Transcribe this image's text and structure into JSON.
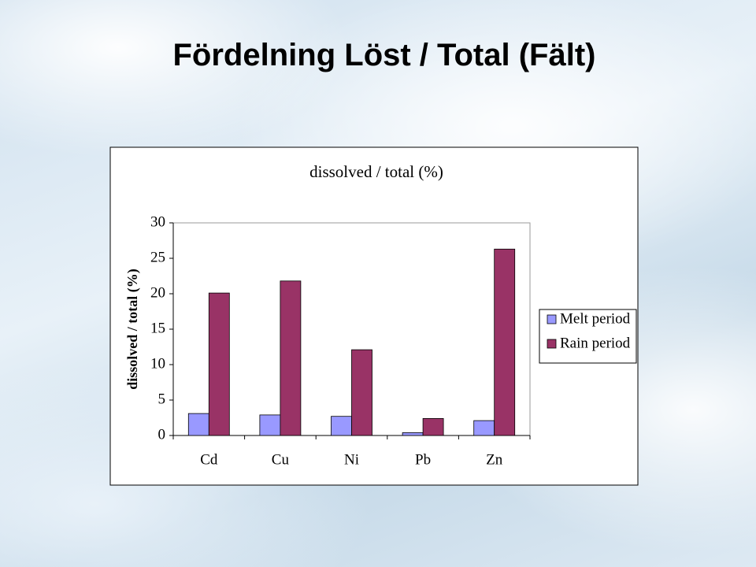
{
  "slide": {
    "title": "Fördelning Löst / Total (Fält)"
  },
  "chart_data": {
    "type": "bar",
    "title": "dissolved / total (%)",
    "y_label": "dissolved / total (%)",
    "categories": [
      "Cd",
      "Cu",
      "Ni",
      "Pb",
      "Zn"
    ],
    "series": [
      {
        "name": "Melt period",
        "color": "#9999ff",
        "values": [
          3.1,
          2.9,
          2.7,
          0.4,
          2.1
        ]
      },
      {
        "name": "Rain period",
        "color": "#993366",
        "values": [
          20.1,
          21.8,
          12.1,
          2.4,
          26.3
        ]
      }
    ],
    "ylim": [
      0,
      30
    ],
    "yticks": [
      0,
      5,
      10,
      15,
      20,
      25,
      30
    ],
    "legend": "right"
  }
}
